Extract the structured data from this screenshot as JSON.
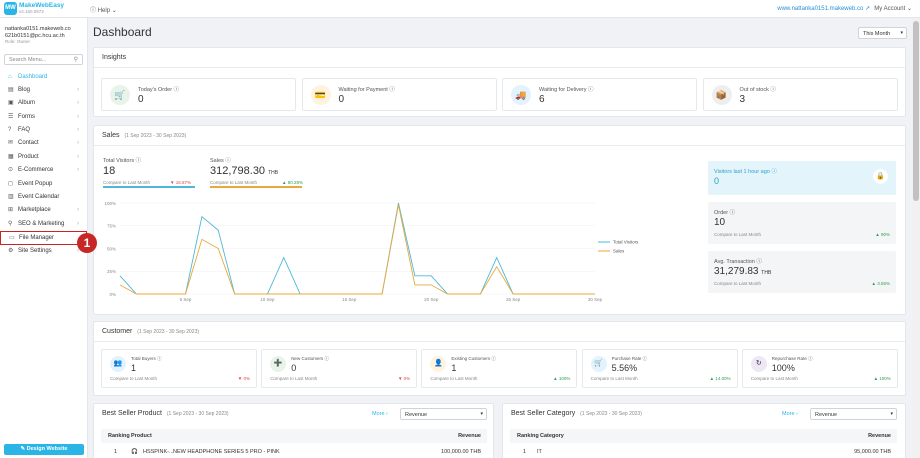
{
  "topbar": {
    "logo_letters": "MW",
    "brand_name": "MakeWebEasy",
    "brand_version": "v4.150.0572",
    "help_label": "Help",
    "site_url": "www.nattanka0151.makeweb.co",
    "account_label": "My Account"
  },
  "user": {
    "site": "nattanka0151.makeweb.co",
    "email": "621b0151@pc.hcu.ac.th",
    "role": "Role: Owner"
  },
  "sidebar": {
    "search_placeholder": "Search Menu...",
    "items": [
      {
        "label": "Dashboard",
        "icon": "home-icon",
        "has_sub": false
      },
      {
        "label": "Blog",
        "icon": "blog-icon",
        "has_sub": true
      },
      {
        "label": "Album",
        "icon": "album-icon",
        "has_sub": true
      },
      {
        "label": "Forms",
        "icon": "forms-icon",
        "has_sub": true
      },
      {
        "label": "FAQ",
        "icon": "faq-icon",
        "has_sub": true
      },
      {
        "label": "Contact",
        "icon": "contact-icon",
        "has_sub": true
      },
      {
        "label": "Product",
        "icon": "product-icon",
        "has_sub": true
      },
      {
        "label": "E-Commerce",
        "icon": "ecommerce-icon",
        "has_sub": true
      },
      {
        "label": "Event Popup",
        "icon": "popup-icon",
        "has_sub": false
      },
      {
        "label": "Event Calendar",
        "icon": "calendar-icon",
        "has_sub": false
      },
      {
        "label": "Marketplace",
        "icon": "marketplace-icon",
        "has_sub": true
      },
      {
        "label": "SEO & Marketing",
        "icon": "seo-icon",
        "has_sub": true
      },
      {
        "label": "File Manager",
        "icon": "folder-icon",
        "has_sub": false
      },
      {
        "label": "Site Settings",
        "icon": "gear-icon",
        "has_sub": true
      }
    ],
    "step_marker": "1",
    "design_button": "Design Website"
  },
  "page": {
    "title": "Dashboard",
    "period": "This Month"
  },
  "insights": {
    "title": "Insights",
    "items": [
      {
        "label": "Today's Order",
        "value": "0",
        "color": "#e6f4ea",
        "icon": "cart-icon"
      },
      {
        "label": "Waiting for Payment",
        "value": "0",
        "color": "#fff3e0",
        "icon": "payment-icon"
      },
      {
        "label": "Waiting for Delivery",
        "value": "6",
        "color": "#e3f2fd",
        "icon": "truck-icon"
      },
      {
        "label": "Out of stock",
        "value": "3",
        "color": "#eeeeee",
        "icon": "box-icon"
      }
    ]
  },
  "sales": {
    "title": "Sales",
    "range": "(1 Sep 2023 - 30 Sep 2023)",
    "total_visitors_label": "Total Visitors",
    "total_visitors_value": "18",
    "visitors_compare": "Compare to Last Month",
    "visitors_change": "▼ 16.67%",
    "sales_label": "Sales",
    "sales_value": "312,798.30",
    "sales_unit": "THB",
    "sales_compare": "Compare to Last Month",
    "sales_change": "▲ 80.28%",
    "visitors_last_hour_label": "Visitors last 1 hour ago",
    "visitors_last_hour_value": "0",
    "order_label": "Order",
    "order_value": "10",
    "order_compare": "Compare to Last Month",
    "order_change": "▲ 90%",
    "avg_label": "Avg. Transaction",
    "avg_value": "31,279.83",
    "avg_unit": "THB",
    "avg_compare": "Compare to Last Month",
    "avg_change": "▲ 3.55%",
    "accent_visitors": "#4db8d8",
    "accent_sales": "#e8a93a"
  },
  "chart_data": {
    "type": "line",
    "x": [
      1,
      2,
      3,
      4,
      5,
      6,
      7,
      8,
      9,
      10,
      11,
      12,
      13,
      14,
      15,
      16,
      17,
      18,
      19,
      20,
      21,
      22,
      23,
      24,
      25,
      26,
      27,
      28,
      29,
      30
    ],
    "x_ticks": [
      "5 Sep",
      "10 Sep",
      "15 Sep",
      "20 Sep",
      "25 Sep",
      "30 Sep"
    ],
    "y_ticks": [
      "0%",
      "25%",
      "50%",
      "75%",
      "100%"
    ],
    "ylim": [
      0,
      100
    ],
    "series": [
      {
        "name": "Total Visitors",
        "color": "#4db8d8",
        "values": [
          20,
          0,
          0,
          0,
          0,
          85,
          70,
          0,
          0,
          0,
          40,
          0,
          0,
          0,
          0,
          0,
          0,
          100,
          20,
          20,
          0,
          0,
          0,
          40,
          0,
          0,
          0,
          0,
          0,
          0
        ]
      },
      {
        "name": "Sales",
        "color": "#e8a93a",
        "values": [
          10,
          0,
          0,
          0,
          0,
          60,
          50,
          0,
          0,
          0,
          0,
          0,
          0,
          0,
          0,
          0,
          0,
          98,
          10,
          10,
          0,
          0,
          0,
          30,
          0,
          0,
          0,
          0,
          0,
          0
        ]
      }
    ],
    "legend_position": "right"
  },
  "customer": {
    "title": "Customer",
    "range": "(1 Sep 2023 - 30 Sep 2023)",
    "items": [
      {
        "label": "Total Buyers",
        "value": "1",
        "note": "Compare to Last Month",
        "change": "▼ 0%",
        "dir": "down",
        "color": "#e3f2fd",
        "icon": "buyers-icon"
      },
      {
        "label": "New Customers",
        "value": "0",
        "note": "Compare to Last Month",
        "change": "▼ 0%",
        "dir": "down",
        "color": "#e6f4ea",
        "icon": "new-customer-icon"
      },
      {
        "label": "Existing Customers",
        "value": "1",
        "note": "Compare to Last Month",
        "change": "▲ 100%",
        "dir": "up",
        "color": "#fff3e0",
        "icon": "existing-customer-icon"
      },
      {
        "label": "Purchase Rate",
        "value": "5.56%",
        "note": "Compare to Last Month",
        "change": "▲ 14.00%",
        "dir": "up",
        "color": "#e3f2fd",
        "icon": "purchase-rate-icon"
      },
      {
        "label": "Repurchase Rate",
        "value": "100%",
        "note": "Compare to Last Month",
        "change": "▲ 100%",
        "dir": "up",
        "color": "#ede7f6",
        "icon": "repurchase-icon"
      }
    ]
  },
  "best_product": {
    "title": "Best Seller Product",
    "range": "(1 Sep 2023 - 30 Sep 2023)",
    "more": "More",
    "select": "Revenue",
    "col_ranking": "Ranking",
    "col_product": "Product",
    "col_revenue": "Revenue",
    "rows": [
      {
        "rank": "1",
        "sku": "HSSPINK-...",
        "name": "NEW HEADPHONE SERIES 5 PRO - PINK",
        "revenue": "100,000.00 THB"
      }
    ]
  },
  "best_category": {
    "title": "Best Seller Category",
    "range": "(1 Sep 2023 - 30 Sep 2023)",
    "more": "More",
    "select": "Revenue",
    "col_ranking": "Ranking",
    "col_category": "Category",
    "col_revenue": "Revenue",
    "rows": [
      {
        "rank": "1",
        "category": "IT",
        "revenue": "95,000.00 THB"
      }
    ]
  }
}
